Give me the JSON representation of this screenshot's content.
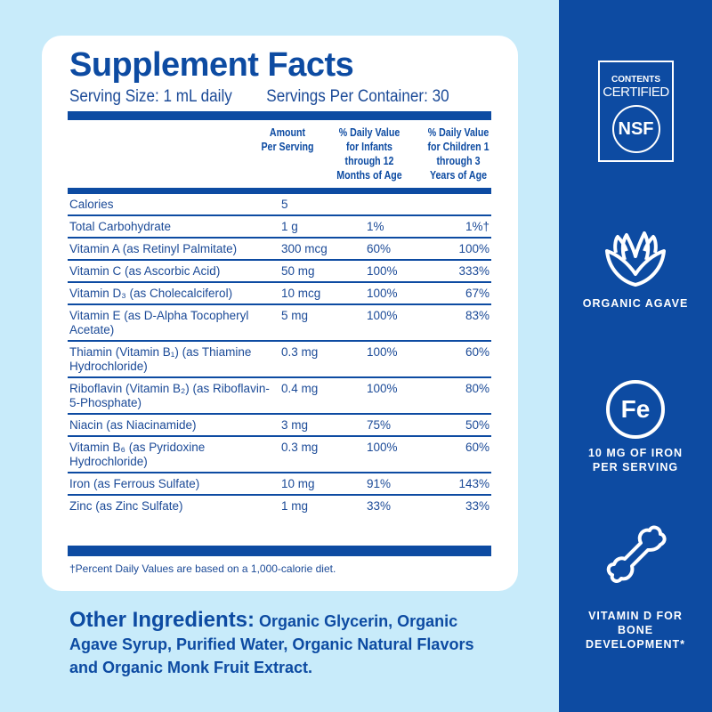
{
  "title": "Supplement Facts",
  "serving_size": "Serving Size: 1 mL daily",
  "servings_per_container": "Servings Per Container: 30",
  "headers": {
    "amount": "Amount Per Serving",
    "infants": "% Daily Value for Infants through 12 Months of Age",
    "children": "% Daily Value for Children 1 through 3 Years of Age"
  },
  "rows": [
    {
      "name": "Calories",
      "amount": "5",
      "infants": "",
      "children": ""
    },
    {
      "name": "Total Carbohydrate",
      "amount": "1 g",
      "infants": "1%",
      "children": "1%†"
    },
    {
      "name": "Vitamin A (as Retinyl Palmitate)",
      "amount": "300 mcg",
      "infants": "60%",
      "children": "100%"
    },
    {
      "name": "Vitamin C (as Ascorbic Acid)",
      "amount": "50 mg",
      "infants": "100%",
      "children": "333%"
    },
    {
      "name": "Vitamin D₃ (as Cholecalciferol)",
      "amount": "10 mcg",
      "infants": "100%",
      "children": "67%"
    },
    {
      "name": "Vitamin E (as D-Alpha Tocopheryl Acetate)",
      "amount": "5 mg",
      "infants": "100%",
      "children": "83%"
    },
    {
      "name": "Thiamin (Vitamin B₁) (as Thiamine Hydrochloride)",
      "amount": "0.3 mg",
      "infants": "100%",
      "children": "60%"
    },
    {
      "name": "Riboflavin (Vitamin B₂) (as Riboflavin-5-Phosphate)",
      "amount": "0.4 mg",
      "infants": "100%",
      "children": "80%"
    },
    {
      "name": "Niacin (as Niacinamide)",
      "amount": "3 mg",
      "infants": "75%",
      "children": "50%"
    },
    {
      "name": "Vitamin B₆ (as Pyridoxine Hydrochloride)",
      "amount": "0.3 mg",
      "infants": "100%",
      "children": "60%"
    },
    {
      "name": "Iron (as Ferrous Sulfate)",
      "amount": "10 mg",
      "infants": "91%",
      "children": "143%"
    },
    {
      "name": "Zinc (as Zinc Sulfate)",
      "amount": "1 mg",
      "infants": "33%",
      "children": "33%"
    }
  ],
  "footnote": "†Percent Daily Values are based on a 1,000-calorie diet.",
  "other_label": "Other Ingredients:",
  "other_text": "Organic Glycerin, Organic Agave Syrup, Purified Water, Organic Natural Flavors and Organic Monk Fruit Extract.",
  "panel": {
    "nsf_top": "CONTENTS",
    "nsf_mid": "CERTIFIED",
    "nsf_logo": "NSF",
    "agave": "ORGANIC AGAVE",
    "fe_symbol": "Fe",
    "iron": "10 MG OF IRON PER SERVING",
    "vitd": "VITAMIN D FOR BONE DEVELOPMENT*"
  },
  "colors": {
    "background": "#c8ebfa",
    "brand_blue": "#0d4ba2"
  }
}
